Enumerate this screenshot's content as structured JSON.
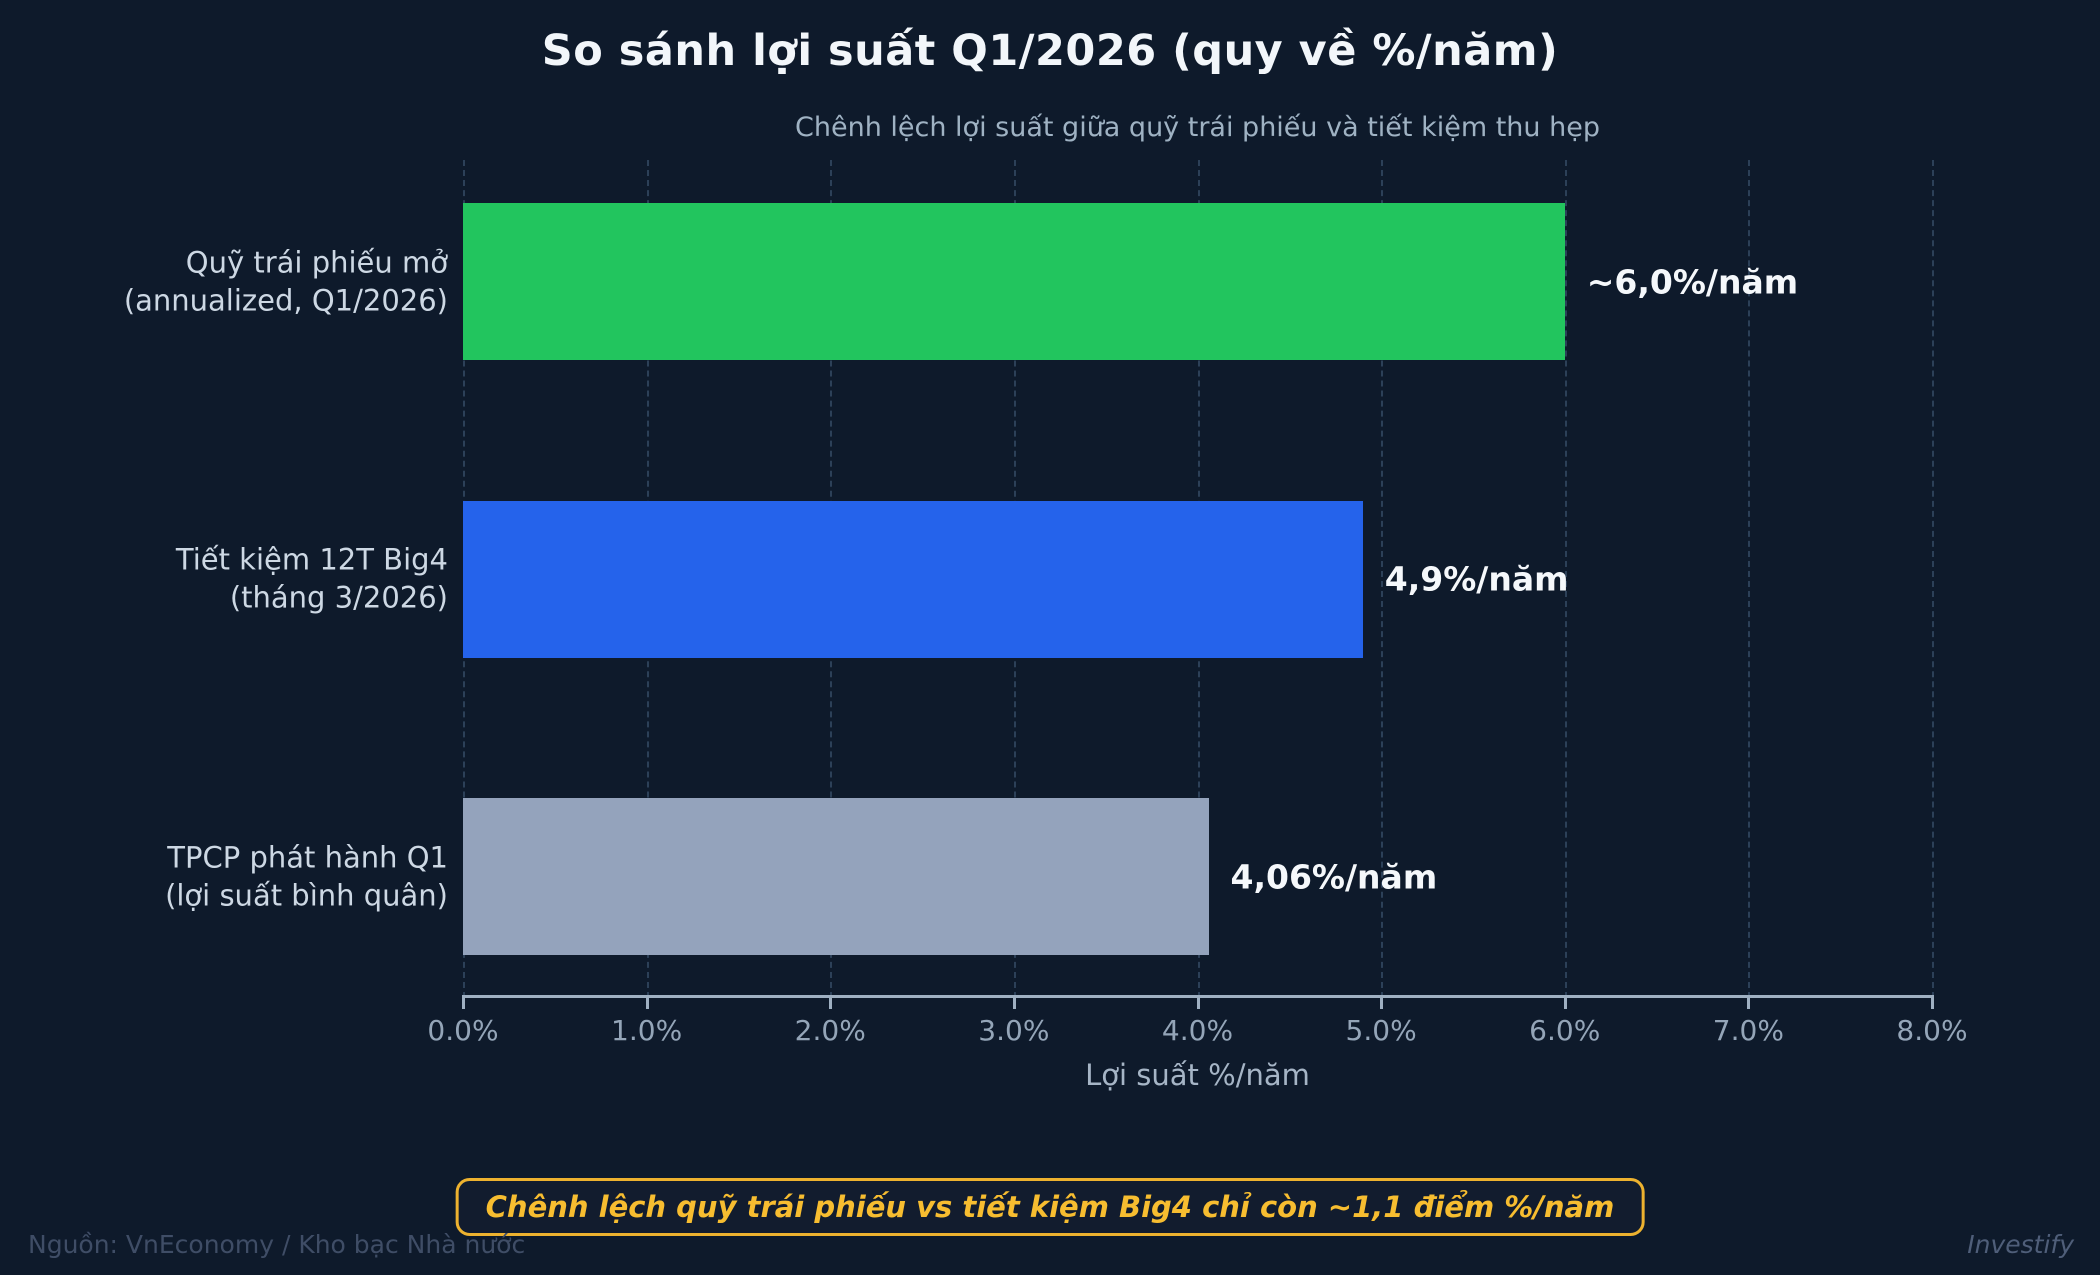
{
  "chart_data": {
    "type": "bar",
    "orientation": "horizontal",
    "title": "So sánh lợi suất Q1/2026 (quy về %/năm)",
    "subtitle": "Chênh lệch lợi suất giữa quỹ trái phiếu và tiết kiệm thu hẹp",
    "xlabel": "Lợi suất %/năm",
    "xlim": [
      0,
      8
    ],
    "grid": "vertical-dashed",
    "legend": "none",
    "x_ticks": [
      {
        "value": 0,
        "label": "0.0%"
      },
      {
        "value": 1,
        "label": "1.0%"
      },
      {
        "value": 2,
        "label": "2.0%"
      },
      {
        "value": 3,
        "label": "3.0%"
      },
      {
        "value": 4,
        "label": "4.0%"
      },
      {
        "value": 5,
        "label": "5.0%"
      },
      {
        "value": 6,
        "label": "6.0%"
      },
      {
        "value": 7,
        "label": "7.0%"
      },
      {
        "value": 8,
        "label": "8.0%"
      }
    ],
    "bars": [
      {
        "label_lines": [
          "Quỹ trái phiếu mở",
          "(annualized, Q1/2026)"
        ],
        "value": 6.0,
        "value_label": "~6,0%/năm",
        "color": "#22c55e"
      },
      {
        "label_lines": [
          "Tiết kiệm 12T Big4",
          "(tháng 3/2026)"
        ],
        "value": 4.9,
        "value_label": "4,9%/năm",
        "color": "#2563eb"
      },
      {
        "label_lines": [
          "TPCP phát hành Q1",
          "(lợi suất bình quân)"
        ],
        "value": 4.06,
        "value_label": "4,06%/năm",
        "color": "#94a3bc"
      }
    ]
  },
  "annotation": {
    "text": "Chênh lệch quỹ trái phiếu vs tiết kiệm Big4 chỉ còn ~1,1 điểm %/năm",
    "border_color": "#edb22f",
    "text_color": "#f7bd30"
  },
  "footer": {
    "source": "Nguồn: VnEconomy / Kho bạc Nhà nước",
    "brand": "Investify"
  },
  "colors": {
    "background": "#0e1a2b",
    "title_text": "#f2f6fa",
    "subtitle_text": "#9fb2c3",
    "axis": "#9fb0c2",
    "tick_label": "#94a5b8",
    "gridline": "#2c4058"
  }
}
